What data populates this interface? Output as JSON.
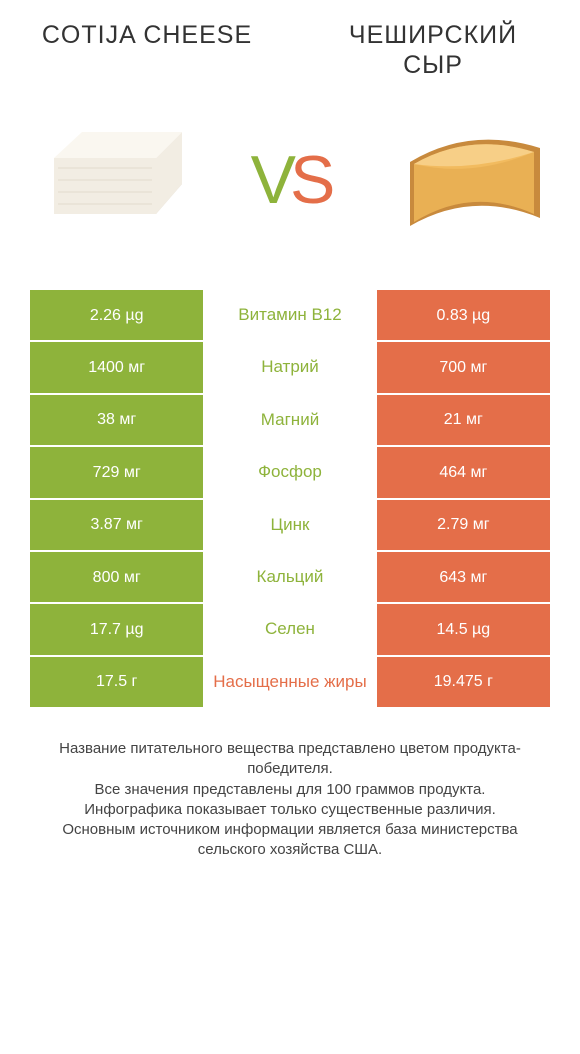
{
  "titles": {
    "left": "COTIJA CHEESE",
    "right": "ЧЕШИРСКИЙ СЫР"
  },
  "colors": {
    "left": "#8eb33b",
    "right": "#e46e49",
    "cheese_left_fill": "#f2ede3",
    "cheese_left_shadow": "#d8d2c3",
    "cheese_right_fill": "#f2bb5f",
    "cheese_right_rind": "#c88a3d",
    "cheese_right_shadow": "#d99d42"
  },
  "vs": {
    "v": "V",
    "s": "S"
  },
  "rows": [
    {
      "left": "2.26 µg",
      "name": "Витамин B12",
      "right": "0.83 µg",
      "winner": "left"
    },
    {
      "left": "1400 мг",
      "name": "Натрий",
      "right": "700 мг",
      "winner": "left"
    },
    {
      "left": "38 мг",
      "name": "Магний",
      "right": "21 мг",
      "winner": "left"
    },
    {
      "left": "729 мг",
      "name": "Фосфор",
      "right": "464 мг",
      "winner": "left"
    },
    {
      "left": "3.87 мг",
      "name": "Цинк",
      "right": "2.79 мг",
      "winner": "left"
    },
    {
      "left": "800 мг",
      "name": "Кальций",
      "right": "643 мг",
      "winner": "left"
    },
    {
      "left": "17.7 µg",
      "name": "Селен",
      "right": "14.5 µg",
      "winner": "left"
    },
    {
      "left": "17.5 г",
      "name": "Насыщенные жиры",
      "right": "19.475 г",
      "winner": "right"
    }
  ],
  "footer": {
    "line1": "Название питательного вещества представлено цветом продукта-победителя.",
    "line2": "Все значения представлены для 100 граммов продукта.",
    "line3": "Инфографика показывает только существенные различия.",
    "line4": "Основным источником информации является база министерства сельского хозяйства США."
  }
}
